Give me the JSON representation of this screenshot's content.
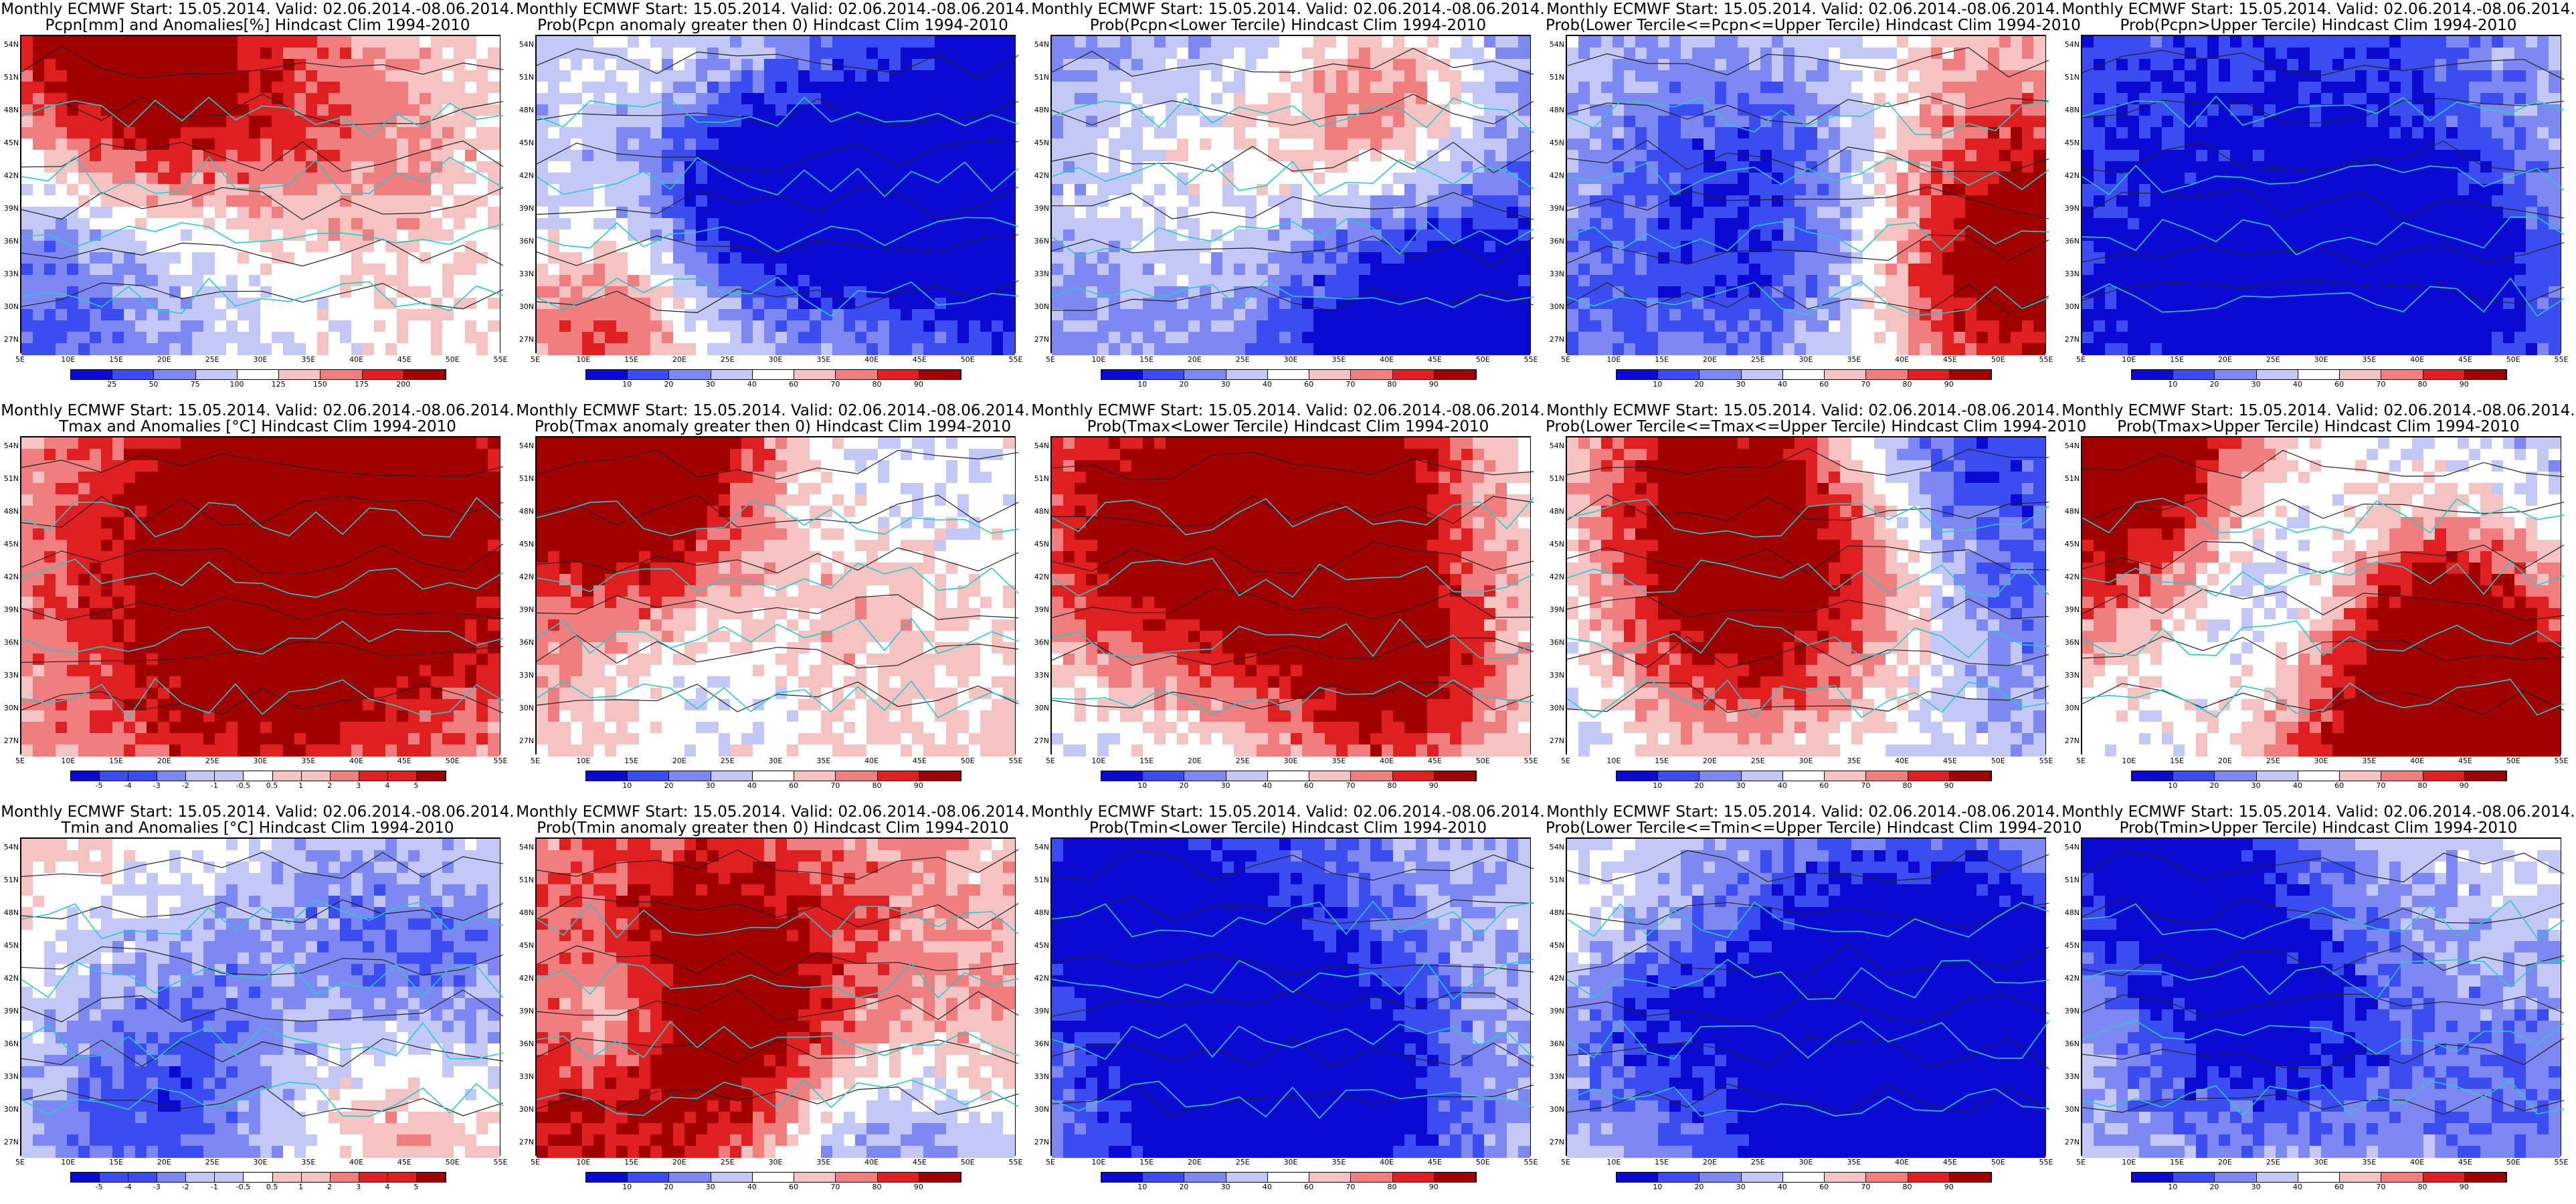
{
  "lat_labels": [
    "54N",
    "51N",
    "48N",
    "45N",
    "42N",
    "39N",
    "36N",
    "33N",
    "30N",
    "27N"
  ],
  "lon_labels": [
    "5E",
    "10E",
    "15E",
    "20E",
    "25E",
    "30E",
    "35E",
    "40E",
    "45E",
    "50E",
    "55E"
  ],
  "colors": {
    "deep_blue": "#0a0ad2",
    "blue": "#3b4cf0",
    "mid_blue": "#7e88f2",
    "light_blue": "#c3c8f6",
    "white": "#ffffff",
    "light_red": "#f6c3c3",
    "mid_red": "#f07e7e",
    "red": "#e02020",
    "deep_red": "#a00000",
    "coast": "#22cccc",
    "contour": "#222222"
  },
  "panels": [
    {
      "id": "pcpn-anom",
      "title_line1": "Monthly ECMWF Start: 15.05.2014. Valid: 02.06.2014.-08.06.2014.",
      "title_line2": "Pcpn[mm] and Anomalies[%] Hindcast Clim 1994-2010",
      "colorbar_ticks": [
        "25",
        "50",
        "75",
        "100",
        "125",
        "150",
        "175",
        "200"
      ],
      "field_level": 0.05
    },
    {
      "id": "pcpn-prob-gt0",
      "title_line1": "Monthly ECMWF Start: 15.05.2014. Valid: 02.06.2014.-08.06.2014.",
      "title_line2": "Prob(Pcpn anomaly greater then 0) Hindcast Clim 1994-2010",
      "colorbar_ticks": [
        "10",
        "20",
        "30",
        "40",
        "60",
        "70",
        "80",
        "90"
      ],
      "field_level": -0.35
    },
    {
      "id": "pcpn-prob-lower",
      "title_line1": "Monthly ECMWF Start: 15.05.2014. Valid: 02.06.2014.-08.06.2014.",
      "title_line2": "Prob(Pcpn<Lower Tercile) Hindcast Clim 1994-2010",
      "colorbar_ticks": [
        "10",
        "20",
        "30",
        "40",
        "60",
        "70",
        "80",
        "90"
      ],
      "field_level": -0.55
    },
    {
      "id": "pcpn-prob-middle",
      "title_line1": "Monthly ECMWF Start: 15.05.2014. Valid: 02.06.2014.-08.06.2014.",
      "title_line2": "Prob(Lower Tercile<=Pcpn<=Upper Tercile) Hindcast Clim 1994-2010",
      "colorbar_ticks": [
        "10",
        "20",
        "30",
        "40",
        "60",
        "70",
        "80",
        "90"
      ],
      "field_level": -0.15
    },
    {
      "id": "pcpn-prob-upper",
      "title_line1": "Monthly ECMWF Start: 15.05.2014. Valid: 02.06.2014.-08.06.2014.",
      "title_line2": "Prob(Pcpn>Upper Tercile) Hindcast Clim 1994-2010",
      "colorbar_ticks": [
        "10",
        "20",
        "30",
        "40",
        "60",
        "70",
        "80",
        "90"
      ],
      "field_level": -0.25
    },
    {
      "id": "tmax-anom",
      "title_line1": "Monthly ECMWF Start: 15.05.2014. Valid: 02.06.2014.-08.06.2014.",
      "title_line2": "Tmax and Anomalies [°C] Hindcast Clim 1994-2010",
      "colorbar_ticks": [
        "-5",
        "-4",
        "-3",
        "-2",
        "-1",
        "-0.5",
        "0.5",
        "1",
        "2",
        "3",
        "4",
        "5"
      ],
      "field_level": 0.2
    },
    {
      "id": "tmax-prob-gt0",
      "title_line1": "Monthly ECMWF Start: 15.05.2014. Valid: 02.06.2014.-08.06.2014.",
      "title_line2": "Prob(Tmax anomaly greater then 0) Hindcast Clim 1994-2010",
      "colorbar_ticks": [
        "10",
        "20",
        "30",
        "40",
        "60",
        "70",
        "80",
        "90"
      ],
      "field_level": 0.1
    },
    {
      "id": "tmax-prob-lower",
      "title_line1": "Monthly ECMWF Start: 15.05.2014. Valid: 02.06.2014.-08.06.2014.",
      "title_line2": "Prob(Tmax<Lower Tercile) Hindcast Clim 1994-2010",
      "colorbar_ticks": [
        "10",
        "20",
        "30",
        "40",
        "60",
        "70",
        "80",
        "90"
      ],
      "field_level": -0.4
    },
    {
      "id": "tmax-prob-middle",
      "title_line1": "Monthly ECMWF Start: 15.05.2014. Valid: 02.06.2014.-08.06.2014.",
      "title_line2": "Prob(Lower Tercile<=Tmax<=Upper Tercile) Hindcast Clim 1994-2010",
      "colorbar_ticks": [
        "10",
        "20",
        "30",
        "40",
        "60",
        "70",
        "80",
        "90"
      ],
      "field_level": -0.3
    },
    {
      "id": "tmax-prob-upper",
      "title_line1": "Monthly ECMWF Start: 15.05.2014. Valid: 02.06.2014.-08.06.2014.",
      "title_line2": "Prob(Tmax>Upper Tercile) Hindcast Clim 1994-2010",
      "colorbar_ticks": [
        "10",
        "20",
        "30",
        "40",
        "60",
        "70",
        "80",
        "90"
      ],
      "field_level": -0.2
    },
    {
      "id": "tmin-anom",
      "title_line1": "Monthly ECMWF Start: 15.05.2014. Valid: 02.06.2014.-08.06.2014.",
      "title_line2": "Tmin and Anomalies [°C] Hindcast Clim 1994-2010",
      "colorbar_ticks": [
        "-5",
        "-4",
        "-3",
        "-2",
        "-1",
        "-0.5",
        "0.5",
        "1",
        "2",
        "3",
        "4",
        "5"
      ],
      "field_level": 0.3
    },
    {
      "id": "tmin-prob-gt0",
      "title_line1": "Monthly ECMWF Start: 15.05.2014. Valid: 02.06.2014.-08.06.2014.",
      "title_line2": "Prob(Tmin anomaly greater then 0) Hindcast Clim 1994-2010",
      "colorbar_ticks": [
        "10",
        "20",
        "30",
        "40",
        "60",
        "70",
        "80",
        "90"
      ],
      "field_level": 0.15
    },
    {
      "id": "tmin-prob-lower",
      "title_line1": "Monthly ECMWF Start: 15.05.2014. Valid: 02.06.2014.-08.06.2014.",
      "title_line2": "Prob(Tmin<Lower Tercile) Hindcast Clim 1994-2010",
      "colorbar_ticks": [
        "10",
        "20",
        "30",
        "40",
        "60",
        "70",
        "80",
        "90"
      ],
      "field_level": -0.45
    },
    {
      "id": "tmin-prob-middle",
      "title_line1": "Monthly ECMWF Start: 15.05.2014. Valid: 02.06.2014.-08.06.2014.",
      "title_line2": "Prob(Lower Tercile<=Tmin<=Upper Tercile) Hindcast Clim 1994-2010",
      "colorbar_ticks": [
        "10",
        "20",
        "30",
        "40",
        "60",
        "70",
        "80",
        "90"
      ],
      "field_level": -0.25
    },
    {
      "id": "tmin-prob-upper",
      "title_line1": "Monthly ECMWF Start: 15.05.2014. Valid: 02.06.2014.-08.06.2014.",
      "title_line2": "Prob(Tmin>Upper Tercile) Hindcast Clim 1994-2010",
      "colorbar_ticks": [
        "10",
        "20",
        "30",
        "40",
        "60",
        "70",
        "80",
        "90"
      ],
      "field_level": -0.15
    }
  ]
}
